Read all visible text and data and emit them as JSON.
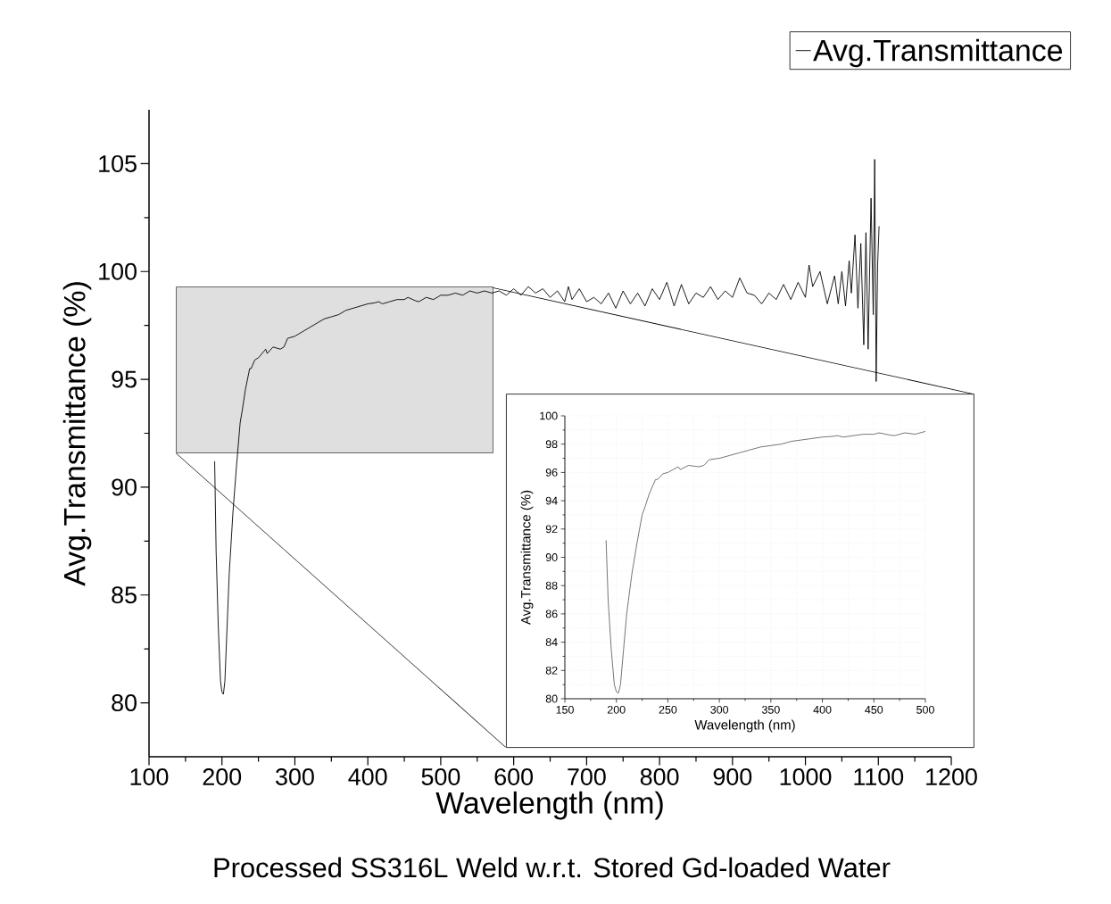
{
  "chart_data": [
    {
      "type": "line",
      "title": "Processed SS316L Weld w.r.t. Stored Gd-loaded Water",
      "xlabel": "Wavelength (nm)",
      "ylabel": "Avg.Transmittance (%)",
      "legend": "top right",
      "xlim": [
        100,
        1200
      ],
      "xticks": [
        100,
        200,
        300,
        400,
        500,
        600,
        700,
        800,
        900,
        1000,
        1100,
        1200
      ],
      "ylim": [
        77.5,
        107.5
      ],
      "yticks": [
        80,
        85,
        90,
        95,
        100,
        105
      ],
      "series": [
        {
          "name": "Avg.Transmittance",
          "color": "#000000",
          "x": [
            190,
            192,
            195,
            198,
            200,
            202,
            204,
            207,
            210,
            215,
            220,
            225,
            228,
            232,
            238,
            240,
            245,
            250,
            260,
            262,
            270,
            280,
            285,
            290,
            300,
            310,
            320,
            330,
            340,
            350,
            360,
            370,
            380,
            390,
            400,
            410,
            415,
            420,
            430,
            440,
            450,
            455,
            465,
            470,
            480,
            490,
            500,
            510,
            520,
            530,
            540,
            550,
            560,
            570,
            580,
            590,
            600,
            610,
            620,
            630,
            640,
            650,
            660,
            670,
            675,
            680,
            690,
            700,
            710,
            720,
            730,
            740,
            750,
            760,
            770,
            780,
            790,
            800,
            810,
            820,
            830,
            840,
            850,
            860,
            870,
            880,
            890,
            900,
            910,
            920,
            930,
            940,
            950,
            960,
            970,
            980,
            990,
            1000,
            1005,
            1010,
            1020,
            1030,
            1040,
            1045,
            1050,
            1055,
            1060,
            1063,
            1068,
            1072,
            1076,
            1080,
            1083,
            1086,
            1090,
            1093,
            1095,
            1097,
            1099,
            1101
          ],
          "values": [
            91.2,
            87,
            83.5,
            81,
            80.5,
            80.4,
            81,
            83.5,
            86,
            88.8,
            91,
            93,
            93.6,
            94.5,
            95.5,
            95.5,
            95.9,
            96,
            96.4,
            96.2,
            96.5,
            96.4,
            96.5,
            96.9,
            97,
            97.2,
            97.4,
            97.6,
            97.8,
            97.9,
            98.0,
            98.2,
            98.3,
            98.4,
            98.5,
            98.55,
            98.6,
            98.5,
            98.6,
            98.7,
            98.7,
            98.8,
            98.65,
            98.6,
            98.8,
            98.7,
            98.9,
            98.9,
            99.0,
            98.9,
            99.1,
            99.0,
            99.1,
            99.0,
            99.1,
            98.9,
            99.2,
            98.9,
            99.3,
            99.0,
            99.2,
            98.8,
            99.1,
            98.6,
            99.3,
            98.7,
            99.2,
            98.6,
            98.8,
            98.5,
            99.0,
            98.3,
            99.1,
            98.5,
            99.0,
            98.4,
            99.2,
            98.7,
            99.5,
            98.4,
            99.4,
            98.5,
            99.0,
            98.8,
            99.3,
            98.7,
            99.1,
            98.8,
            99.7,
            99.0,
            98.9,
            98.5,
            99.0,
            98.7,
            99.4,
            98.7,
            99.5,
            98.8,
            100.3,
            99.3,
            100.0,
            98.5,
            99.8,
            98.5,
            100.0,
            98.4,
            100.5,
            99.0,
            101.7,
            98.3,
            101.3,
            96.6,
            101.8,
            96.4,
            103.4,
            98.0,
            105.2,
            94.9,
            100.3,
            102.1
          ]
        }
      ]
    },
    {
      "type": "line",
      "xlabel": "Wavelength (nm)",
      "ylabel": "Avg.Transmittance (%)",
      "xlim": [
        150,
        500
      ],
      "xticks": [
        150,
        200,
        250,
        300,
        350,
        400,
        450,
        500
      ],
      "ylim": [
        80,
        100
      ],
      "yticks": [
        80,
        82,
        84,
        86,
        88,
        90,
        92,
        94,
        96,
        98,
        100
      ],
      "grid": true,
      "series": [
        {
          "color": "#666666",
          "x": [
            190,
            192,
            195,
            198,
            200,
            202,
            204,
            207,
            210,
            215,
            220,
            225,
            228,
            232,
            238,
            240,
            245,
            250,
            260,
            262,
            270,
            280,
            285,
            290,
            300,
            310,
            320,
            330,
            340,
            350,
            360,
            370,
            380,
            390,
            400,
            410,
            415,
            420,
            430,
            440,
            450,
            455,
            465,
            470,
            480,
            490,
            500
          ],
          "values": [
            91.2,
            87,
            83.5,
            81,
            80.5,
            80.4,
            81,
            83.5,
            86,
            88.8,
            91,
            93,
            93.6,
            94.5,
            95.5,
            95.5,
            95.9,
            96,
            96.4,
            96.2,
            96.5,
            96.4,
            96.5,
            96.9,
            97,
            97.2,
            97.4,
            97.6,
            97.8,
            97.9,
            98.0,
            98.2,
            98.3,
            98.4,
            98.5,
            98.55,
            98.6,
            98.5,
            98.6,
            98.7,
            98.7,
            98.8,
            98.65,
            98.6,
            98.8,
            98.7,
            98.9
          ]
        }
      ]
    }
  ]
}
